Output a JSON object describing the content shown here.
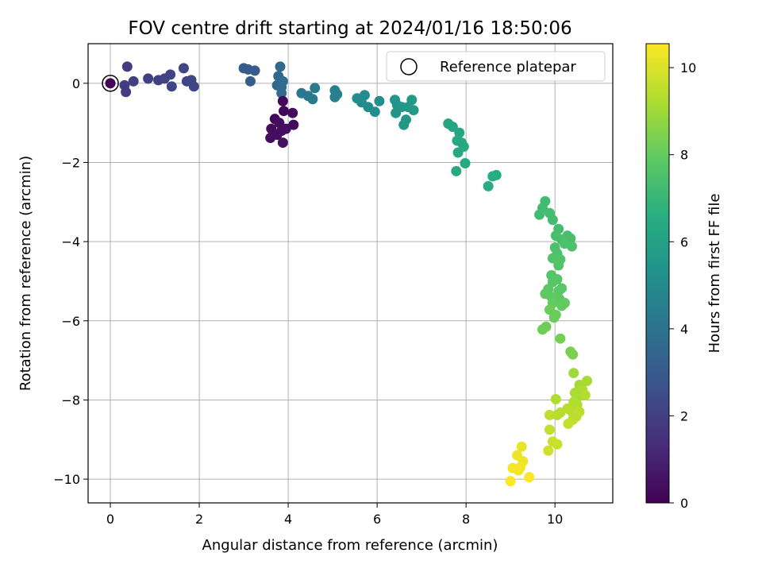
{
  "chart_data": {
    "type": "scatter",
    "title": "FOV centre drift starting at 2024/01/16 18:50:06",
    "xlabel": "Angular distance from reference (arcmin)",
    "ylabel": "Rotation from reference (arcmin)",
    "colorbar_label": "Hours from first FF file",
    "xlim": [
      -0.5,
      11.3
    ],
    "ylim": [
      -10.6,
      1.0
    ],
    "clim": [
      0,
      10.55
    ],
    "x_ticks": [
      0,
      2,
      4,
      6,
      8,
      10
    ],
    "y_ticks": [
      0,
      -2,
      -4,
      -6,
      -8,
      -10
    ],
    "colorbar_ticks": [
      0,
      2,
      4,
      6,
      8,
      10
    ],
    "colormap": "viridis",
    "grid": true,
    "legend_position": "top-right",
    "reference": {
      "label": "Reference platepar",
      "x": 0,
      "y": 0
    },
    "points": [
      {
        "x": 0.0,
        "y": 0.0,
        "t": 0.1
      },
      {
        "x": 0.32,
        "y": -0.05,
        "t": 1.9
      },
      {
        "x": 0.35,
        "y": -0.22,
        "t": 1.9
      },
      {
        "x": 0.38,
        "y": 0.42,
        "t": 1.9
      },
      {
        "x": 0.52,
        "y": 0.05,
        "t": 2.0
      },
      {
        "x": 0.85,
        "y": 0.12,
        "t": 2.0
      },
      {
        "x": 1.08,
        "y": 0.08,
        "t": 2.0
      },
      {
        "x": 1.22,
        "y": 0.12,
        "t": 2.1
      },
      {
        "x": 1.35,
        "y": 0.22,
        "t": 2.1
      },
      {
        "x": 1.38,
        "y": -0.08,
        "t": 2.1
      },
      {
        "x": 1.65,
        "y": 0.38,
        "t": 2.2
      },
      {
        "x": 1.72,
        "y": 0.05,
        "t": 2.2
      },
      {
        "x": 1.82,
        "y": 0.08,
        "t": 2.2
      },
      {
        "x": 1.88,
        "y": -0.08,
        "t": 2.2
      },
      {
        "x": 3.0,
        "y": 0.38,
        "t": 3.0
      },
      {
        "x": 3.1,
        "y": 0.35,
        "t": 3.0
      },
      {
        "x": 3.15,
        "y": 0.05,
        "t": 3.1
      },
      {
        "x": 3.25,
        "y": 0.32,
        "t": 3.1
      },
      {
        "x": 3.82,
        "y": 0.42,
        "t": 3.6
      },
      {
        "x": 3.78,
        "y": 0.18,
        "t": 3.6
      },
      {
        "x": 3.75,
        "y": -0.05,
        "t": 3.6
      },
      {
        "x": 3.85,
        "y": -0.1,
        "t": 3.7
      },
      {
        "x": 3.88,
        "y": 0.05,
        "t": 3.7
      },
      {
        "x": 3.85,
        "y": -0.25,
        "t": 3.7
      },
      {
        "x": 3.88,
        "y": -0.45,
        "t": 0.2
      },
      {
        "x": 3.9,
        "y": -0.7,
        "t": 0.2
      },
      {
        "x": 3.7,
        "y": -0.9,
        "t": 0.2
      },
      {
        "x": 3.8,
        "y": -1.0,
        "t": 0.3
      },
      {
        "x": 4.1,
        "y": -0.75,
        "t": 0.3
      },
      {
        "x": 4.12,
        "y": -1.05,
        "t": 0.3
      },
      {
        "x": 3.62,
        "y": -1.15,
        "t": 0.3
      },
      {
        "x": 3.85,
        "y": -1.2,
        "t": 0.4
      },
      {
        "x": 3.95,
        "y": -1.15,
        "t": 0.4
      },
      {
        "x": 3.6,
        "y": -1.38,
        "t": 0.4
      },
      {
        "x": 3.75,
        "y": -1.3,
        "t": 0.4
      },
      {
        "x": 3.88,
        "y": -1.5,
        "t": 0.5
      },
      {
        "x": 4.3,
        "y": -0.25,
        "t": 4.2
      },
      {
        "x": 4.45,
        "y": -0.32,
        "t": 4.2
      },
      {
        "x": 4.55,
        "y": -0.4,
        "t": 4.3
      },
      {
        "x": 4.6,
        "y": -0.12,
        "t": 4.3
      },
      {
        "x": 5.05,
        "y": -0.18,
        "t": 4.6
      },
      {
        "x": 5.1,
        "y": -0.28,
        "t": 4.6
      },
      {
        "x": 5.05,
        "y": -0.35,
        "t": 4.6
      },
      {
        "x": 5.55,
        "y": -0.38,
        "t": 5.0
      },
      {
        "x": 5.65,
        "y": -0.48,
        "t": 5.0
      },
      {
        "x": 5.72,
        "y": -0.3,
        "t": 5.1
      },
      {
        "x": 5.8,
        "y": -0.6,
        "t": 5.1
      },
      {
        "x": 5.95,
        "y": -0.72,
        "t": 5.2
      },
      {
        "x": 6.05,
        "y": -0.45,
        "t": 5.2
      },
      {
        "x": 6.4,
        "y": -0.42,
        "t": 5.5
      },
      {
        "x": 6.45,
        "y": -0.55,
        "t": 5.5
      },
      {
        "x": 6.42,
        "y": -0.75,
        "t": 5.5
      },
      {
        "x": 6.55,
        "y": -0.6,
        "t": 5.6
      },
      {
        "x": 6.6,
        "y": -1.05,
        "t": 5.6
      },
      {
        "x": 6.65,
        "y": -0.92,
        "t": 5.6
      },
      {
        "x": 6.7,
        "y": -0.6,
        "t": 5.7
      },
      {
        "x": 6.78,
        "y": -0.42,
        "t": 5.7
      },
      {
        "x": 6.82,
        "y": -0.68,
        "t": 5.7
      },
      {
        "x": 7.6,
        "y": -1.02,
        "t": 6.2
      },
      {
        "x": 7.7,
        "y": -1.1,
        "t": 6.2
      },
      {
        "x": 7.85,
        "y": -1.25,
        "t": 6.2
      },
      {
        "x": 7.8,
        "y": -1.45,
        "t": 6.3
      },
      {
        "x": 7.9,
        "y": -1.5,
        "t": 6.3
      },
      {
        "x": 7.95,
        "y": -1.6,
        "t": 6.3
      },
      {
        "x": 7.82,
        "y": -1.75,
        "t": 6.3
      },
      {
        "x": 7.78,
        "y": -2.22,
        "t": 6.4
      },
      {
        "x": 7.98,
        "y": -2.02,
        "t": 6.4
      },
      {
        "x": 8.5,
        "y": -2.6,
        "t": 6.5
      },
      {
        "x": 8.6,
        "y": -2.35,
        "t": 6.5
      },
      {
        "x": 8.68,
        "y": -2.32,
        "t": 6.5
      },
      {
        "x": 9.78,
        "y": -2.98,
        "t": 7.2
      },
      {
        "x": 9.72,
        "y": -3.15,
        "t": 7.2
      },
      {
        "x": 9.65,
        "y": -3.32,
        "t": 7.2
      },
      {
        "x": 9.88,
        "y": -3.28,
        "t": 7.3
      },
      {
        "x": 9.95,
        "y": -3.45,
        "t": 7.3
      },
      {
        "x": 10.08,
        "y": -3.68,
        "t": 7.3
      },
      {
        "x": 10.02,
        "y": -3.85,
        "t": 7.4
      },
      {
        "x": 10.15,
        "y": -3.95,
        "t": 7.4
      },
      {
        "x": 10.28,
        "y": -3.85,
        "t": 7.4
      },
      {
        "x": 10.35,
        "y": -3.92,
        "t": 7.4
      },
      {
        "x": 10.38,
        "y": -4.12,
        "t": 7.5
      },
      {
        "x": 10.22,
        "y": -4.05,
        "t": 7.5
      },
      {
        "x": 10.0,
        "y": -4.15,
        "t": 7.5
      },
      {
        "x": 10.05,
        "y": -4.3,
        "t": 7.5
      },
      {
        "x": 9.95,
        "y": -4.42,
        "t": 7.6
      },
      {
        "x": 10.12,
        "y": -4.45,
        "t": 7.6
      },
      {
        "x": 10.08,
        "y": -4.6,
        "t": 7.6
      },
      {
        "x": 9.92,
        "y": -4.85,
        "t": 7.7
      },
      {
        "x": 9.95,
        "y": -5.02,
        "t": 7.7
      },
      {
        "x": 10.05,
        "y": -4.95,
        "t": 7.7
      },
      {
        "x": 9.85,
        "y": -5.2,
        "t": 7.8
      },
      {
        "x": 10.08,
        "y": -5.25,
        "t": 7.8
      },
      {
        "x": 10.15,
        "y": -5.18,
        "t": 7.8
      },
      {
        "x": 9.78,
        "y": -5.32,
        "t": 7.9
      },
      {
        "x": 9.92,
        "y": -5.4,
        "t": 7.9
      },
      {
        "x": 10.1,
        "y": -5.45,
        "t": 7.9
      },
      {
        "x": 10.22,
        "y": -5.55,
        "t": 8.0
      },
      {
        "x": 9.95,
        "y": -5.55,
        "t": 8.0
      },
      {
        "x": 10.15,
        "y": -5.62,
        "t": 8.0
      },
      {
        "x": 9.88,
        "y": -5.72,
        "t": 8.1
      },
      {
        "x": 10.02,
        "y": -5.85,
        "t": 8.1
      },
      {
        "x": 9.98,
        "y": -5.92,
        "t": 8.1
      },
      {
        "x": 9.72,
        "y": -6.22,
        "t": 8.2
      },
      {
        "x": 9.8,
        "y": -6.15,
        "t": 8.2
      },
      {
        "x": 10.12,
        "y": -6.45,
        "t": 8.3
      },
      {
        "x": 10.35,
        "y": -6.78,
        "t": 8.4
      },
      {
        "x": 10.4,
        "y": -6.85,
        "t": 8.4
      },
      {
        "x": 10.42,
        "y": -7.32,
        "t": 9.0
      },
      {
        "x": 10.55,
        "y": -7.62,
        "t": 9.1
      },
      {
        "x": 10.72,
        "y": -7.52,
        "t": 9.1
      },
      {
        "x": 10.45,
        "y": -7.82,
        "t": 9.2
      },
      {
        "x": 10.55,
        "y": -7.9,
        "t": 9.2
      },
      {
        "x": 10.62,
        "y": -7.75,
        "t": 9.2
      },
      {
        "x": 10.68,
        "y": -7.88,
        "t": 9.3
      },
      {
        "x": 10.02,
        "y": -7.98,
        "t": 9.3
      },
      {
        "x": 10.42,
        "y": -8.05,
        "t": 9.3
      },
      {
        "x": 10.5,
        "y": -8.12,
        "t": 9.3
      },
      {
        "x": 10.28,
        "y": -8.22,
        "t": 9.4
      },
      {
        "x": 10.38,
        "y": -8.3,
        "t": 9.4
      },
      {
        "x": 10.12,
        "y": -8.32,
        "t": 9.4
      },
      {
        "x": 10.05,
        "y": -8.38,
        "t": 9.4
      },
      {
        "x": 9.88,
        "y": -8.38,
        "t": 9.5
      },
      {
        "x": 10.55,
        "y": -8.3,
        "t": 9.5
      },
      {
        "x": 10.48,
        "y": -8.42,
        "t": 9.5
      },
      {
        "x": 10.4,
        "y": -8.5,
        "t": 9.5
      },
      {
        "x": 10.3,
        "y": -8.6,
        "t": 9.6
      },
      {
        "x": 9.88,
        "y": -8.75,
        "t": 9.6
      },
      {
        "x": 9.95,
        "y": -9.05,
        "t": 9.7
      },
      {
        "x": 10.05,
        "y": -9.12,
        "t": 9.7
      },
      {
        "x": 9.85,
        "y": -9.28,
        "t": 9.8
      },
      {
        "x": 9.25,
        "y": -9.18,
        "t": 10.2
      },
      {
        "x": 9.15,
        "y": -9.4,
        "t": 10.3
      },
      {
        "x": 9.28,
        "y": -9.55,
        "t": 10.3
      },
      {
        "x": 9.22,
        "y": -9.7,
        "t": 10.4
      },
      {
        "x": 9.05,
        "y": -9.72,
        "t": 10.4
      },
      {
        "x": 9.18,
        "y": -9.78,
        "t": 10.4
      },
      {
        "x": 9.42,
        "y": -9.95,
        "t": 10.5
      },
      {
        "x": 9.0,
        "y": -10.05,
        "t": 10.5
      }
    ]
  }
}
